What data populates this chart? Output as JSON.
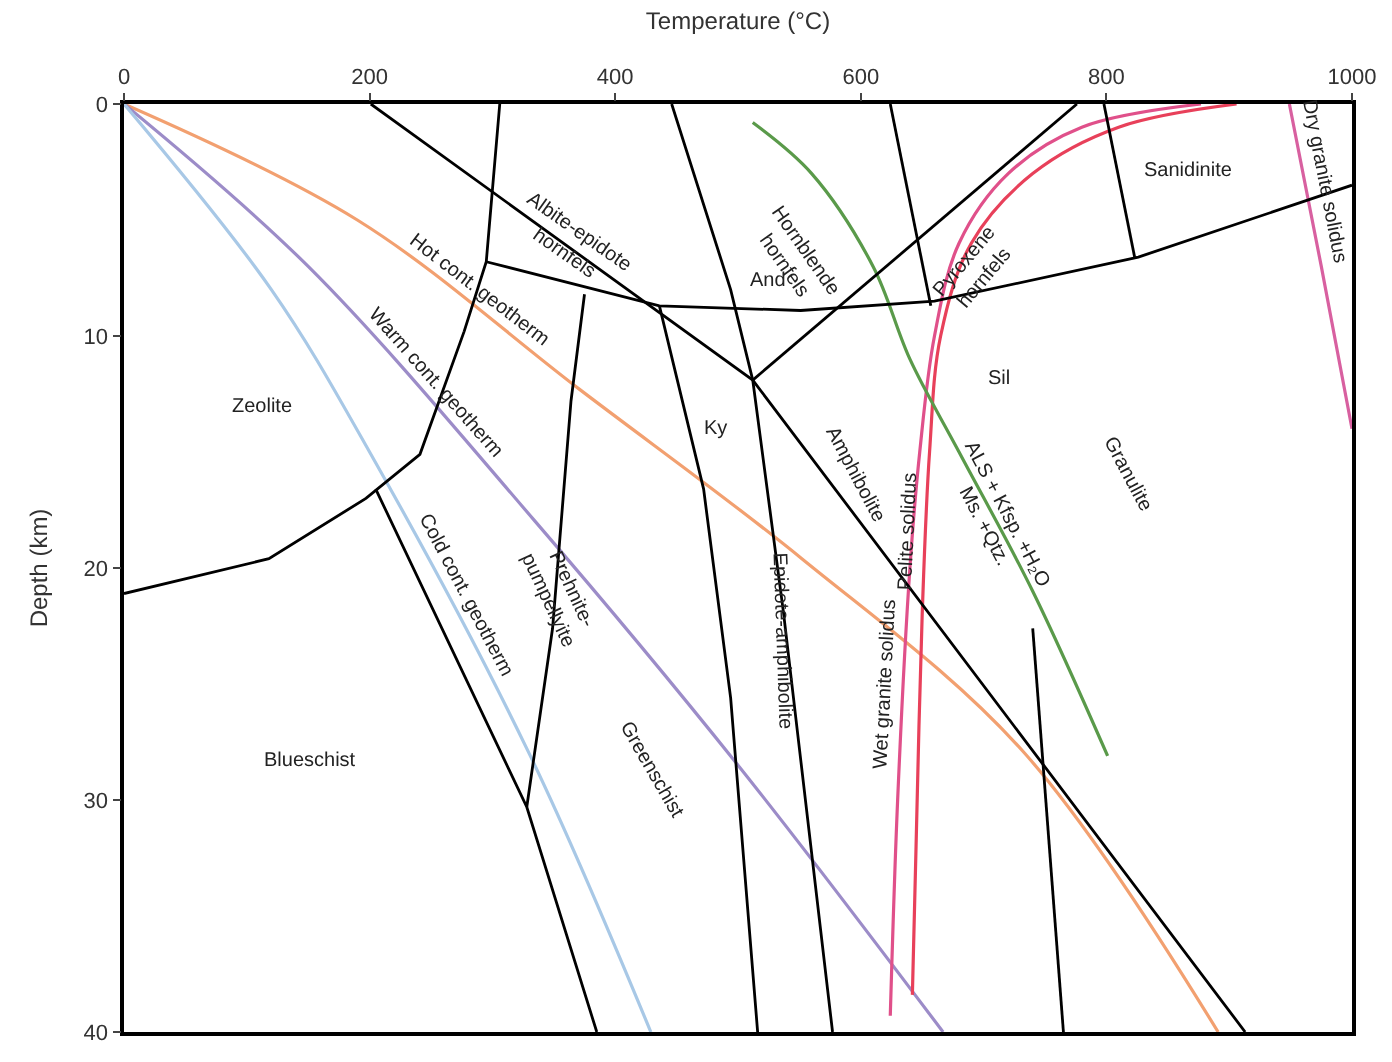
{
  "chart_data": {
    "type": "line",
    "xlabel": "Temperature (°C)",
    "ylabel": "Depth (km)",
    "xlim": [
      0,
      1000
    ],
    "xticks": [
      0,
      200,
      400,
      600,
      800,
      1000
    ],
    "ylim": [
      40,
      0
    ],
    "yticks": [
      0,
      10,
      20,
      30,
      40
    ],
    "legend": false,
    "marker": "none",
    "line_style": "solid",
    "series": [
      {
        "name": "Hot cont. geotherm",
        "color": "#f2a070",
        "x": [
          0,
          190,
          371,
          552,
          732,
          891
        ],
        "values": [
          0,
          5,
          12.3,
          19.6,
          27.9,
          40
        ]
      },
      {
        "name": "Warm cont. geotherm",
        "color": "#9c8cc8",
        "x": [
          0,
          150,
          335,
          500,
          667
        ],
        "values": [
          0,
          7,
          18,
          28.5,
          40
        ]
      },
      {
        "name": "Cold cont. geotherm",
        "color": "#a8c8e6",
        "x": [
          0,
          120,
          200,
          330,
          429
        ],
        "values": [
          0,
          8,
          15,
          28,
          40
        ]
      },
      {
        "name": "Wet granite solidus",
        "color": "#e0508a",
        "x": [
          624,
          630,
          640,
          648,
          660,
          680,
          720,
          780,
          877
        ],
        "values": [
          39.3,
          30,
          20,
          15,
          10,
          6,
          3,
          1,
          0
        ]
      },
      {
        "name": "Pelite solidus",
        "color": "#e8405a",
        "x": [
          642,
          645,
          650,
          656,
          665,
          690,
          740,
          810,
          906
        ],
        "values": [
          38.4,
          32,
          22,
          15,
          10,
          6,
          3,
          1,
          0
        ]
      },
      {
        "name": "Dry granite solidus",
        "color": "#d860a0",
        "x": [
          949,
          975,
          1000
        ],
        "values": [
          0,
          7,
          14
        ]
      },
      {
        "name": "ALS + Kfsp. +H₂O\nMs. +Qtz.",
        "color": "#5a9a4a",
        "x": [
          512,
          560,
          610,
          640,
          680,
          740,
          801
        ],
        "values": [
          0.8,
          3,
          7,
          11,
          15,
          21,
          28.1
        ]
      },
      {
        "color": "#000000",
        "x": [
          201,
          512,
          913
        ],
        "values": [
          0,
          11.9,
          40
        ]
      },
      {
        "color": "#000000",
        "x": [
          512,
          776
        ],
        "values": [
          11.9,
          0
        ]
      },
      {
        "color": "#000000",
        "x": [
          295,
          436,
          551,
          660,
          826,
          1000
        ],
        "values": [
          6.8,
          8.7,
          8.9,
          8.5,
          6.6,
          3.5
        ]
      },
      {
        "color": "#000000",
        "x": [
          306,
          295,
          277,
          241,
          197,
          118,
          0
        ],
        "values": [
          0,
          6.8,
          9.8,
          15.1,
          17,
          19.6,
          21.1
        ]
      },
      {
        "color": "#000000",
        "x": [
          375,
          364,
          349,
          328
        ],
        "values": [
          8.2,
          12.8,
          22.6,
          30.3
        ]
      },
      {
        "color": "#000000",
        "x": [
          205,
          328,
          385
        ],
        "values": [
          16.6,
          30.3,
          40
        ]
      },
      {
        "color": "#000000",
        "x": [
          436,
          472,
          494,
          516
        ],
        "values": [
          8.7,
          16.6,
          25.6,
          40
        ]
      },
      {
        "color": "#000000",
        "x": [
          446,
          494,
          512,
          537,
          577
        ],
        "values": [
          0,
          8,
          11.9,
          21.9,
          40
        ]
      },
      {
        "color": "#000000",
        "x": [
          624,
          657
        ],
        "values": [
          0,
          8.7
        ]
      },
      {
        "color": "#000000",
        "x": [
          740,
          765
        ],
        "values": [
          22.6,
          40
        ]
      },
      {
        "color": "#000000",
        "x": [
          798,
          823
        ],
        "values": [
          0,
          6.6
        ]
      }
    ],
    "annotations": [
      "Zeolite",
      "Blueschist",
      "Prehnite-\npumpellyite",
      "Greenschist",
      "Epidote-amphibolite",
      "Amphibolite",
      "Granulite",
      "Albite-epidote\nhornfels",
      "Hornblende\nhornfels",
      "Pyroxene\nhornfels",
      "Sanidinite",
      "And",
      "Ky",
      "Sil"
    ]
  }
}
